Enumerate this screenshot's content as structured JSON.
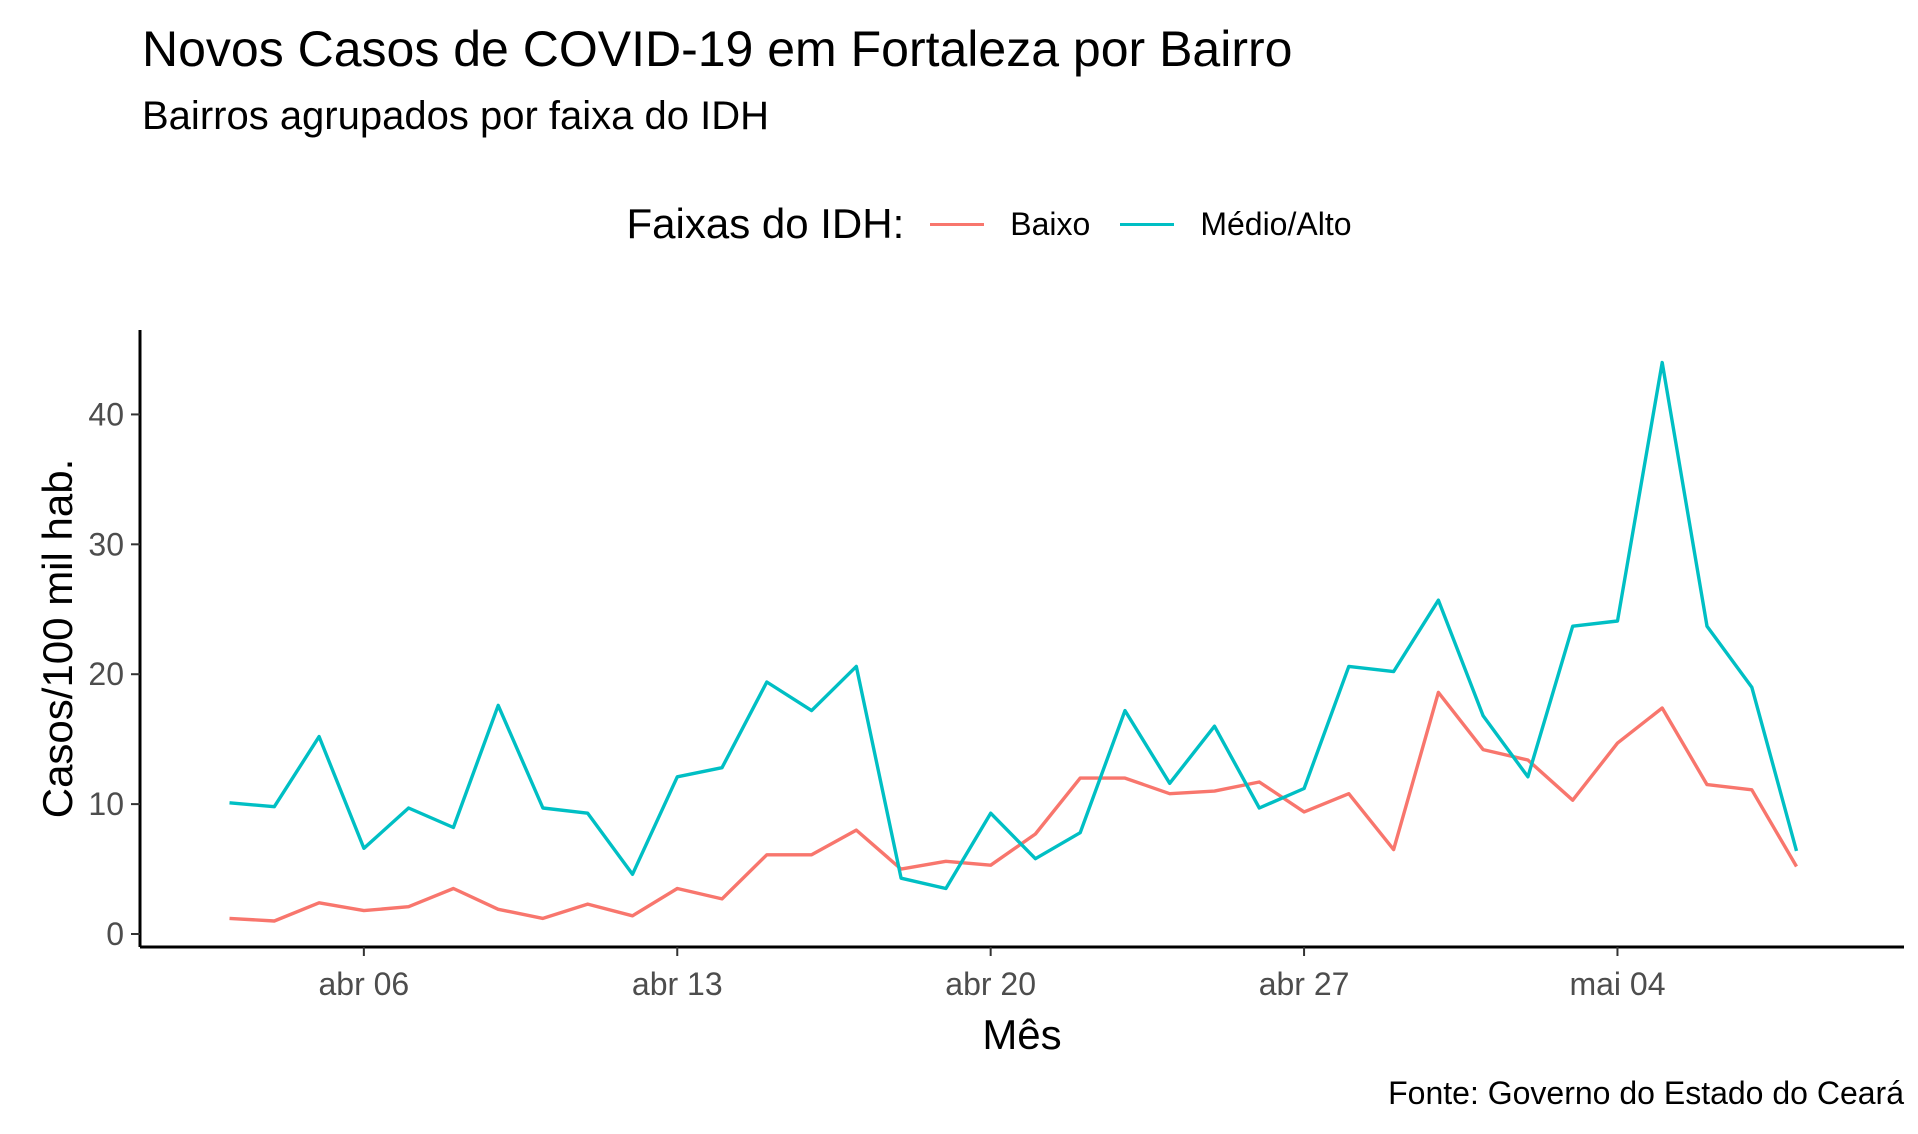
{
  "chart_data": {
    "type": "line",
    "title": "Novos Casos de COVID-19 em Fortaleza por Bairro",
    "subtitle": "Bairros agrupados por faixa do IDH",
    "xlabel": "Mês",
    "ylabel": "Casos/100 mil hab.",
    "caption": "Fonte: Governo do Estado do Ceará",
    "legend_title": "Faixas do IDH:",
    "legend_position": "top",
    "grid": false,
    "x_start_day": 0,
    "x_tick_values": [
      3,
      10,
      17,
      24,
      31
    ],
    "x_tick_labels": [
      "abr 06",
      "abr 13",
      "abr 20",
      "abr 27",
      "mai 04"
    ],
    "xlim": [
      -2.0,
      37.4
    ],
    "ylim": [
      -1.0,
      46.5
    ],
    "y_ticks": [
      0,
      10,
      20,
      30,
      40
    ],
    "series": [
      {
        "name": "Baixo",
        "color": "#F8766D",
        "values": [
          1.2,
          1.0,
          2.4,
          1.8,
          2.1,
          3.5,
          1.9,
          1.2,
          2.3,
          1.4,
          3.5,
          2.7,
          6.1,
          6.1,
          8.0,
          5.0,
          5.6,
          5.3,
          7.7,
          12.0,
          12.0,
          10.8,
          11.0,
          11.7,
          9.4,
          10.8,
          6.5,
          18.6,
          14.2,
          13.4,
          10.3,
          14.7,
          17.4,
          11.5,
          11.1,
          5.2
        ]
      },
      {
        "name": "Médio/Alto",
        "color": "#00BFC4",
        "values": [
          10.1,
          9.8,
          15.2,
          6.6,
          9.7,
          8.2,
          17.6,
          9.7,
          9.3,
          4.6,
          12.1,
          12.8,
          19.4,
          17.2,
          20.6,
          4.3,
          3.5,
          9.3,
          5.8,
          7.8,
          17.2,
          11.6,
          16.0,
          9.7,
          11.2,
          20.6,
          20.2,
          25.7,
          16.8,
          12.1,
          23.7,
          24.1,
          44.0,
          23.7,
          19.0,
          6.4
        ]
      }
    ]
  }
}
